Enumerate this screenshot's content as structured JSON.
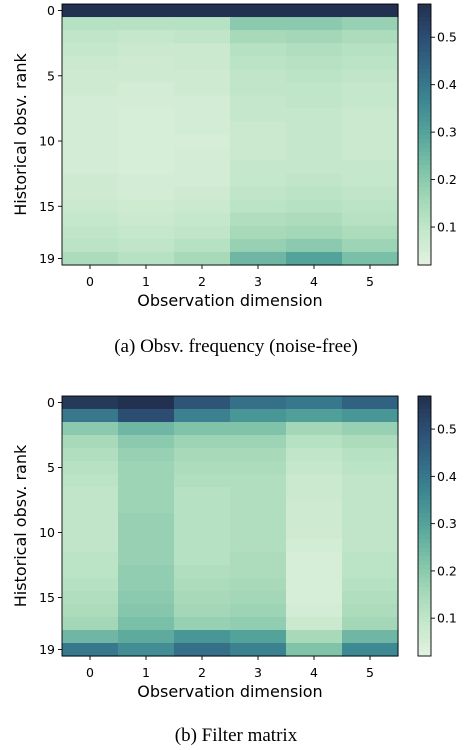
{
  "colormap": [
    "#e3f2e1",
    "#c6e8cc",
    "#a4d8b8",
    "#7cc1a8",
    "#56a59b",
    "#3d8892",
    "#336a86",
    "#2c4c72",
    "#22314f"
  ],
  "chart_data": [
    {
      "type": "heatmap",
      "caption": "(a) Obsv. frequency (noise-free)",
      "xlabel": "Observation dimension",
      "ylabel": "Historical obsv. rank",
      "x": [
        0,
        1,
        2,
        3,
        4,
        5
      ],
      "y": [
        0,
        1,
        2,
        3,
        4,
        5,
        6,
        7,
        8,
        9,
        10,
        11,
        12,
        13,
        14,
        15,
        16,
        17,
        18,
        19
      ],
      "x_ticks": [
        "0",
        "1",
        "2",
        "3",
        "4",
        "5"
      ],
      "y_ticks": [
        "0",
        "5",
        "10",
        "15",
        "19"
      ],
      "colorbar_ticks": [
        "0.1",
        "0.2",
        "0.3",
        "0.4",
        "0.5"
      ],
      "vmin": 0.02,
      "vmax": 0.57,
      "values": [
        [
          0.57,
          0.57,
          0.57,
          0.57,
          0.57,
          0.57
        ],
        [
          0.12,
          0.12,
          0.12,
          0.2,
          0.2,
          0.18
        ],
        [
          0.1,
          0.09,
          0.1,
          0.15,
          0.16,
          0.14
        ],
        [
          0.09,
          0.08,
          0.08,
          0.12,
          0.13,
          0.12
        ],
        [
          0.08,
          0.07,
          0.08,
          0.11,
          0.12,
          0.11
        ],
        [
          0.07,
          0.07,
          0.07,
          0.1,
          0.11,
          0.1
        ],
        [
          0.07,
          0.06,
          0.07,
          0.1,
          0.1,
          0.09
        ],
        [
          0.06,
          0.06,
          0.06,
          0.09,
          0.1,
          0.09
        ],
        [
          0.06,
          0.05,
          0.06,
          0.09,
          0.09,
          0.08
        ],
        [
          0.06,
          0.05,
          0.06,
          0.08,
          0.09,
          0.08
        ],
        [
          0.06,
          0.05,
          0.05,
          0.08,
          0.09,
          0.08
        ],
        [
          0.06,
          0.05,
          0.06,
          0.08,
          0.09,
          0.08
        ],
        [
          0.06,
          0.05,
          0.06,
          0.09,
          0.09,
          0.09
        ],
        [
          0.07,
          0.06,
          0.06,
          0.09,
          0.1,
          0.09
        ],
        [
          0.07,
          0.06,
          0.07,
          0.1,
          0.11,
          0.1
        ],
        [
          0.08,
          0.07,
          0.08,
          0.11,
          0.12,
          0.11
        ],
        [
          0.09,
          0.08,
          0.09,
          0.13,
          0.14,
          0.12
        ],
        [
          0.1,
          0.09,
          0.1,
          0.15,
          0.16,
          0.14
        ],
        [
          0.11,
          0.1,
          0.12,
          0.18,
          0.2,
          0.17
        ],
        [
          0.14,
          0.12,
          0.15,
          0.25,
          0.3,
          0.23
        ]
      ]
    },
    {
      "type": "heatmap",
      "caption": "(b) Filter matrix",
      "xlabel": "Observation dimension",
      "ylabel": "Historical obsv. rank",
      "x": [
        0,
        1,
        2,
        3,
        4,
        5
      ],
      "y": [
        0,
        1,
        2,
        3,
        4,
        5,
        6,
        7,
        8,
        9,
        10,
        11,
        12,
        13,
        14,
        15,
        16,
        17,
        18,
        19
      ],
      "x_ticks": [
        "0",
        "1",
        "2",
        "3",
        "4",
        "5"
      ],
      "y_ticks": [
        "0",
        "5",
        "10",
        "15",
        "19"
      ],
      "colorbar_ticks": [
        "0.1",
        "0.2",
        "0.3",
        "0.4",
        "0.5"
      ],
      "vmin": 0.02,
      "vmax": 0.57,
      "values": [
        [
          0.55,
          0.57,
          0.48,
          0.42,
          0.4,
          0.45
        ],
        [
          0.4,
          0.5,
          0.38,
          0.33,
          0.31,
          0.33
        ],
        [
          0.2,
          0.25,
          0.22,
          0.22,
          0.16,
          0.18
        ],
        [
          0.15,
          0.2,
          0.17,
          0.17,
          0.12,
          0.14
        ],
        [
          0.13,
          0.18,
          0.15,
          0.15,
          0.1,
          0.12
        ],
        [
          0.12,
          0.17,
          0.14,
          0.14,
          0.09,
          0.11
        ],
        [
          0.11,
          0.17,
          0.13,
          0.13,
          0.08,
          0.1
        ],
        [
          0.1,
          0.17,
          0.12,
          0.13,
          0.08,
          0.1
        ],
        [
          0.1,
          0.17,
          0.12,
          0.13,
          0.07,
          0.1
        ],
        [
          0.1,
          0.18,
          0.12,
          0.13,
          0.07,
          0.1
        ],
        [
          0.1,
          0.18,
          0.12,
          0.13,
          0.07,
          0.1
        ],
        [
          0.1,
          0.18,
          0.12,
          0.13,
          0.06,
          0.1
        ],
        [
          0.11,
          0.18,
          0.12,
          0.14,
          0.05,
          0.11
        ],
        [
          0.11,
          0.19,
          0.13,
          0.14,
          0.05,
          0.11
        ],
        [
          0.12,
          0.19,
          0.14,
          0.15,
          0.05,
          0.12
        ],
        [
          0.13,
          0.2,
          0.15,
          0.16,
          0.05,
          0.13
        ],
        [
          0.14,
          0.21,
          0.16,
          0.17,
          0.06,
          0.14
        ],
        [
          0.16,
          0.23,
          0.18,
          0.19,
          0.08,
          0.16
        ],
        [
          0.25,
          0.28,
          0.33,
          0.3,
          0.15,
          0.25
        ],
        [
          0.4,
          0.35,
          0.42,
          0.38,
          0.22,
          0.36
        ]
      ]
    }
  ]
}
